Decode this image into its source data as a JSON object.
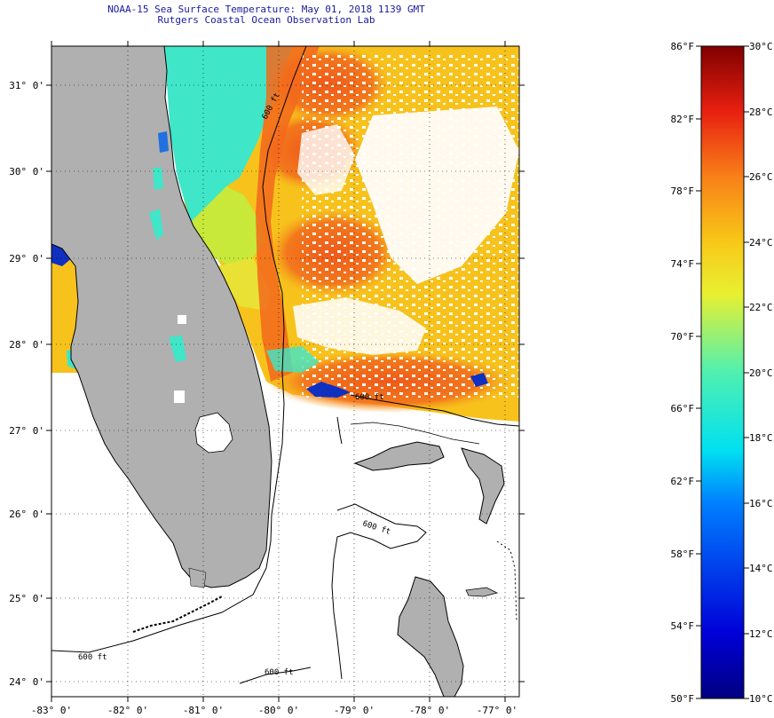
{
  "title": {
    "line1": "NOAA-15 Sea Surface Temperature:  May 01, 2018 1139 GMT",
    "line2": "Rutgers Coastal Ocean Observation Lab"
  },
  "map": {
    "lat_labels": [
      "31° 0'",
      "30° 0'",
      "29° 0'",
      "28° 0'",
      "27° 0'",
      "26° 0'",
      "25° 0'",
      "24° 0'"
    ],
    "lon_labels": [
      "-83° 0'",
      "-82° 0'",
      "-81° 0'",
      "-80° 0'",
      "-79° 0'",
      "-78° 0'",
      "-77° 0'"
    ],
    "contour_labels": [
      "600 ft",
      "600 ft",
      "600 ft",
      "600 ft",
      "600 ft"
    ]
  },
  "colorbar": {
    "fahrenheit": [
      "86°F",
      "82°F",
      "78°F",
      "74°F",
      "70°F",
      "66°F",
      "62°F",
      "58°F",
      "54°F",
      "50°F"
    ],
    "celsius": [
      "30°C",
      "28°C",
      "26°C",
      "24°C",
      "22°C",
      "20°C",
      "18°C",
      "16°C",
      "14°C",
      "12°C",
      "10°C"
    ]
  },
  "colors": {
    "land": "#b0b0b0",
    "title": "#1a1aa0",
    "warm": "#f05a1e",
    "mid": "#f7c21c",
    "cool": "#3fe6c8",
    "cold": "#0a1aa0"
  }
}
